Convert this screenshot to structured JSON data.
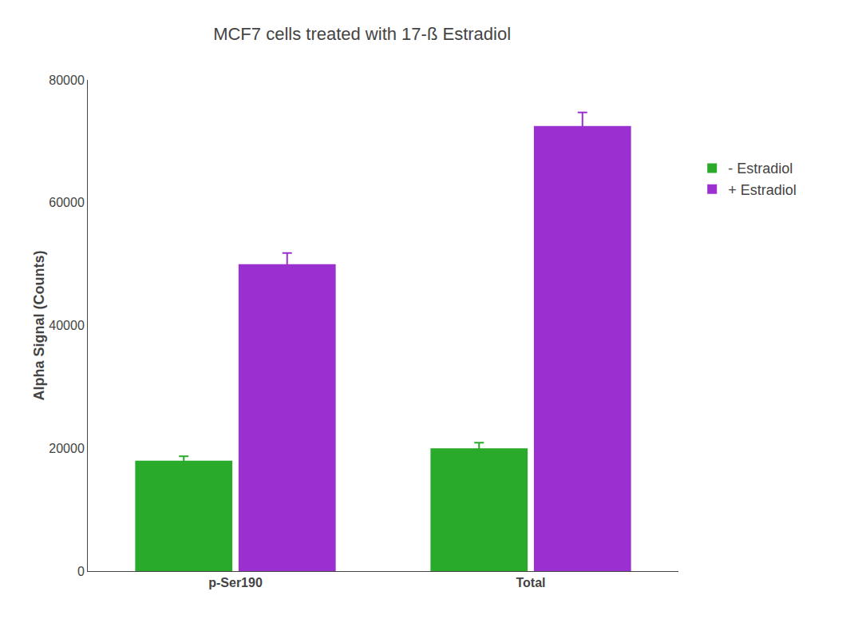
{
  "chart_data": {
    "type": "bar",
    "title": "MCF7 cells treated with 17-ß Estradiol",
    "ylabel": "Alpha Signal (Counts)",
    "categories": [
      "p-Ser190",
      "Total"
    ],
    "series": [
      {
        "name": "- Estradiol",
        "color": "#2aaa2a",
        "values": [
          18000,
          20000
        ],
        "errors": [
          700,
          900
        ]
      },
      {
        "name": "+ Estradiol",
        "color": "#9b30d0",
        "values": [
          50000,
          72500
        ],
        "errors": [
          1800,
          2200
        ]
      }
    ],
    "ylim": [
      0,
      80000
    ],
    "yticks": [
      0,
      20000,
      40000,
      60000,
      80000
    ],
    "grid": false,
    "legend": "right"
  }
}
